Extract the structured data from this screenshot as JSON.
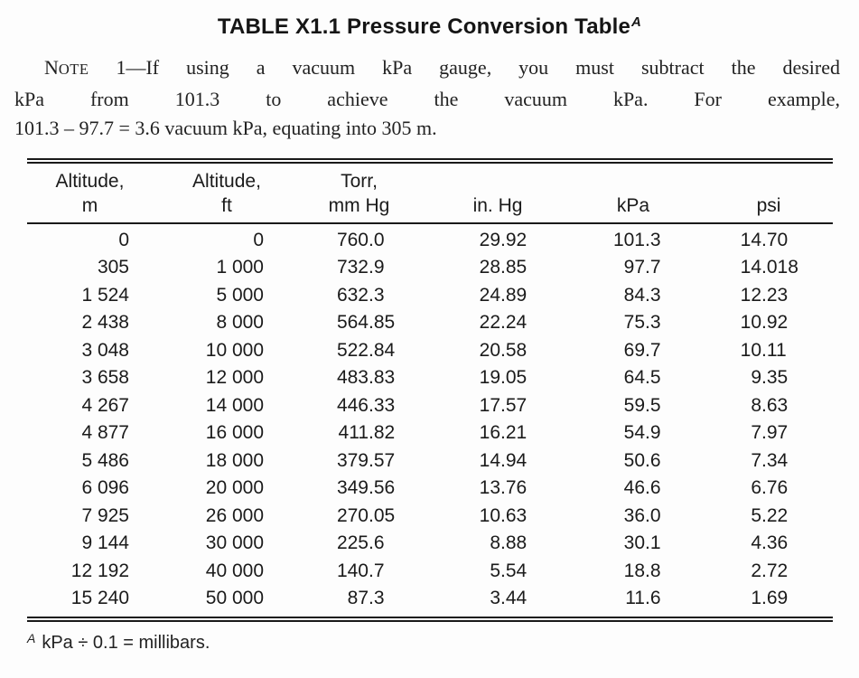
{
  "page": {
    "background": "#fdfdfd",
    "text_color": "#1b1b1b"
  },
  "title": {
    "text": "TABLE X1.1 Pressure Conversion Table",
    "footnote_ref": "A"
  },
  "note": {
    "label_cap": "N",
    "label_small": "OTE",
    "line1_rest": " 1—If using a vacuum kPa gauge, you must subtract the desired",
    "line2": "kPa from 101.3 to achieve the vacuum kPa. For example,",
    "line3": "101.3 – 97.7 = 3.6 vacuum kPa, equating into 305 m."
  },
  "table": {
    "columns": [
      {
        "line1": "Altitude,",
        "line2": "m"
      },
      {
        "line1": "Altitude,",
        "line2": "ft"
      },
      {
        "line1": "Torr,",
        "line2": "mm Hg"
      },
      {
        "line1": "",
        "line2": "in. Hg"
      },
      {
        "line1": "",
        "line2": "kPa"
      },
      {
        "line1": "",
        "line2": "psi"
      }
    ],
    "rows": [
      [
        "0",
        "0",
        "760.0",
        "29.92",
        "101.3",
        "14.70"
      ],
      [
        "305",
        "1 000",
        "732.9",
        "28.85",
        "97.7",
        "14.018"
      ],
      [
        "1 524",
        "5 000",
        "632.3",
        "24.89",
        "84.3",
        "12.23"
      ],
      [
        "2 438",
        "8 000",
        "564.85",
        "22.24",
        "75.3",
        "10.92"
      ],
      [
        "3 048",
        "10 000",
        "522.84",
        "20.58",
        "69.7",
        "10.11"
      ],
      [
        "3 658",
        "12 000",
        "483.83",
        "19.05",
        "64.5",
        "9.35"
      ],
      [
        "4 267",
        "14 000",
        "446.33",
        "17.57",
        "59.5",
        "8.63"
      ],
      [
        "4 877",
        "16 000",
        "411.82",
        "16.21",
        "54.9",
        "7.97"
      ],
      [
        "5 486",
        "18 000",
        "379.57",
        "14.94",
        "50.6",
        "7.34"
      ],
      [
        "6 096",
        "20 000",
        "349.56",
        "13.76",
        "46.6",
        "6.76"
      ],
      [
        "7 925",
        "26 000",
        "270.05",
        "10.63",
        "36.0",
        "5.22"
      ],
      [
        "9 144",
        "30 000",
        "225.6",
        "8.88",
        "30.1",
        "4.36"
      ],
      [
        "12 192",
        "40 000",
        "140.7",
        "5.54",
        "18.8",
        "2.72"
      ],
      [
        "15 240",
        "50 000",
        "87.3",
        "3.44",
        "11.6",
        "1.69"
      ]
    ]
  },
  "footnote": {
    "ref": "A",
    "text": "kPa ÷ 0.1 = millibars."
  }
}
